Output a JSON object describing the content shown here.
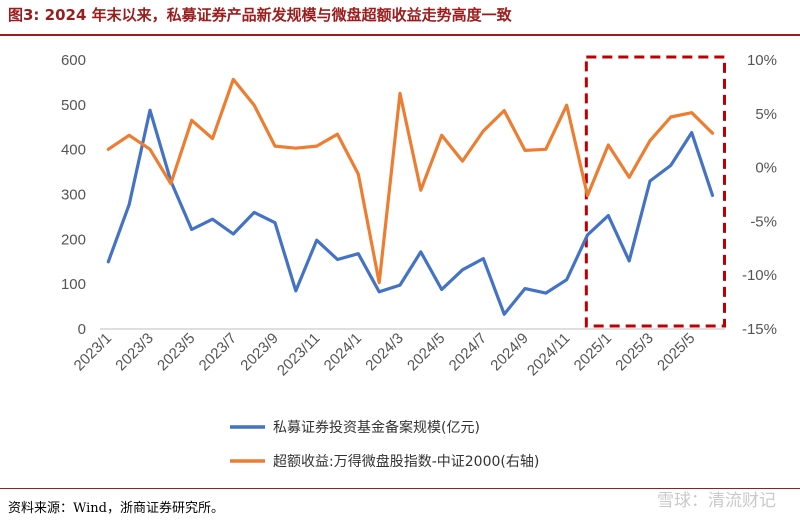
{
  "header": {
    "title": "图3:   2024 年末以来，私募证券产品新发规模与微盘超额收益走势高度一致"
  },
  "footer": {
    "source": "资料来源：Wind，浙商证券研究所。",
    "watermark": "雪球：清流财记"
  },
  "colors": {
    "blue": "#4472c4",
    "orange": "#ed7d31",
    "box": "#c00000",
    "title": "#9b1c1c"
  },
  "chart_data": {
    "type": "line",
    "x": [
      "2023/1",
      "2023/2",
      "2023/3",
      "2023/4",
      "2023/5",
      "2023/6",
      "2023/7",
      "2023/8",
      "2023/9",
      "2023/10",
      "2023/11",
      "2023/12",
      "2024/1",
      "2024/2",
      "2024/3",
      "2024/4",
      "2024/5",
      "2024/6",
      "2024/7",
      "2024/8",
      "2024/9",
      "2024/10",
      "2024/11",
      "2024/12",
      "2025/1",
      "2025/2",
      "2025/3",
      "2025/4",
      "2025/5",
      "2025/6"
    ],
    "x_tick_labels": [
      "2023/1",
      "2023/3",
      "2023/5",
      "2023/7",
      "2023/9",
      "2023/11",
      "2024/1",
      "2024/3",
      "2024/5",
      "2024/7",
      "2024/9",
      "2024/11",
      "2025/1",
      "2025/3",
      "2025/5"
    ],
    "y_left": {
      "ticks": [
        "0",
        "100",
        "200",
        "300",
        "400",
        "500",
        "600"
      ],
      "ylim": [
        0,
        600
      ]
    },
    "y_right": {
      "ticks": [
        "10%",
        "5%",
        "0%",
        "-5%",
        "-10%",
        "-15%"
      ],
      "ylim": [
        -15,
        10
      ]
    },
    "series": [
      {
        "name": "私募证券投资基金备案规模(亿元)",
        "axis": "left",
        "color": "#4472c4",
        "values": [
          150,
          278,
          488,
          330,
          222,
          245,
          212,
          260,
          237,
          85,
          198,
          155,
          168,
          83,
          98,
          172,
          88,
          132,
          157,
          33,
          90,
          80,
          110,
          210,
          253,
          152,
          330,
          365,
          438,
          298
        ]
      },
      {
        "name": "超额收益:万得微盘股指数-中证2000(右轴)",
        "axis": "right",
        "color": "#ed7d31",
        "values": [
          1.7,
          3.0,
          1.7,
          -1.5,
          4.4,
          2.7,
          8.2,
          5.8,
          2.0,
          1.8,
          2.0,
          3.1,
          -0.6,
          -10.7,
          6.9,
          -2.1,
          3.0,
          0.6,
          3.4,
          5.3,
          1.6,
          1.7,
          5.8,
          -2.6,
          2.1,
          -0.9,
          2.5,
          4.7,
          5.1,
          3.2
        ]
      }
    ],
    "highlight": {
      "from": "2025/1",
      "to": "2025/6"
    },
    "grid": false,
    "legend_position": "bottom"
  }
}
